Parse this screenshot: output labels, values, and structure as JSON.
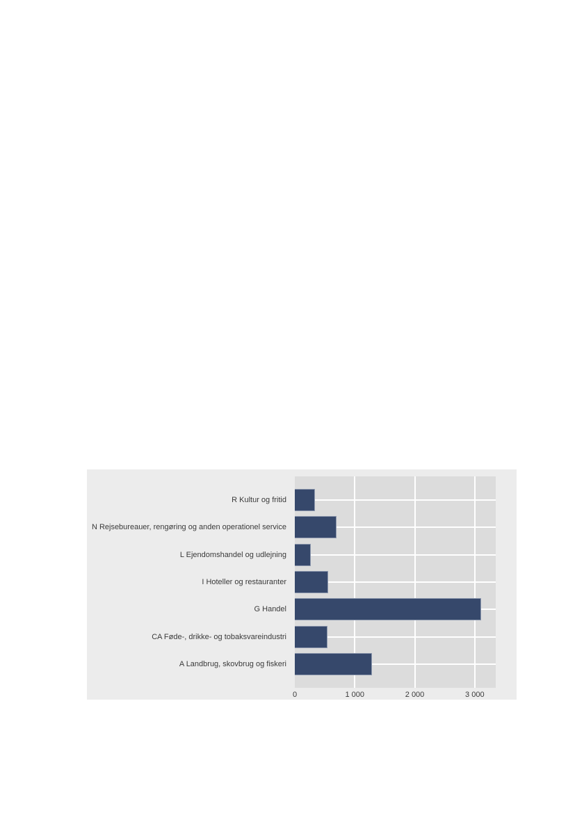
{
  "chart_data": {
    "type": "bar",
    "orientation": "horizontal",
    "title": "",
    "xlabel": "",
    "ylabel": "",
    "categories": [
      "R Kultur og fritid",
      "N Rejsebureauer, rengøring og anden operationel service",
      "L Ejendomshandel og udlejning",
      "I Hoteller og restauranter",
      "G Handel",
      "CA Føde-, drikke- og tobaksvareindustri",
      "A Landbrug, skovbrug og fiskeri"
    ],
    "values": [
      340,
      690,
      270,
      560,
      3110,
      545,
      1290
    ],
    "xlim": [
      0,
      3350
    ],
    "x_ticks": {
      "labels": [
        "0",
        "1 000",
        "2 000",
        "3 000"
      ],
      "values": [
        0,
        1000,
        2000,
        3000
      ]
    },
    "grid": true,
    "legend": false,
    "colors": {
      "bar_fill": "#36486b",
      "bar_border": "#8d98ae",
      "plot_background": "#dcdcdc",
      "chart_background": "#ececec",
      "gridline": "#ffffff",
      "text": "#3a3a3a"
    }
  }
}
